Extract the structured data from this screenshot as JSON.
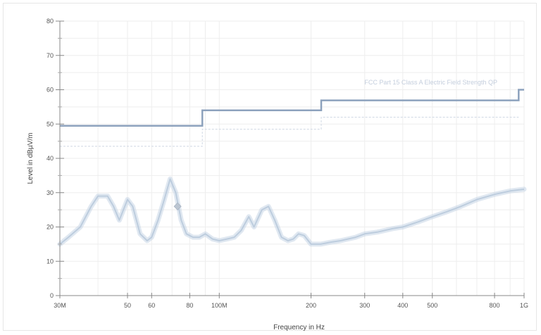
{
  "chart_data": {
    "type": "line",
    "title": "",
    "xlabel": "Frequency in Hz",
    "ylabel": "Level in dBµV/m",
    "x_scale": "log",
    "xlim": [
      30000000,
      1000000000
    ],
    "ylim": [
      0,
      80
    ],
    "grid": true,
    "x_ticks": [
      {
        "value": 30000000,
        "label": "30M"
      },
      {
        "value": 50000000,
        "label": "50"
      },
      {
        "value": 60000000,
        "label": "60"
      },
      {
        "value": 80000000,
        "label": "80"
      },
      {
        "value": 100000000,
        "label": "100M"
      },
      {
        "value": 200000000,
        "label": "200"
      },
      {
        "value": 300000000,
        "label": "300"
      },
      {
        "value": 400000000,
        "label": "400"
      },
      {
        "value": 500000000,
        "label": "500"
      },
      {
        "value": 800000000,
        "label": "800"
      },
      {
        "value": 1000000000,
        "label": "1G"
      }
    ],
    "y_ticks": [
      0,
      10,
      20,
      30,
      40,
      50,
      60,
      70,
      80
    ],
    "series": [
      {
        "name": "FCC Part 15 Class A Electric Field Strength QP",
        "kind": "limit",
        "color": "#8da2bd",
        "x": [
          30000000,
          88000000,
          88000000,
          216000000,
          216000000,
          960000000,
          960000000,
          1000000000
        ],
        "y": [
          49.5,
          49.5,
          54,
          54,
          56.9,
          56.9,
          60,
          60
        ]
      },
      {
        "name": "",
        "kind": "limit-faint",
        "color": "#cfd7e3",
        "x": [
          30000000,
          88000000,
          88000000,
          216000000,
          216000000,
          960000000
        ],
        "y": [
          43.5,
          43.5,
          48.5,
          48.5,
          52,
          52
        ]
      },
      {
        "name": "",
        "kind": "measurement",
        "color": "#c7d6e6",
        "x": [
          30000000,
          32000000,
          35000000,
          38000000,
          40000000,
          43000000,
          45000000,
          47000000,
          50000000,
          52000000,
          55000000,
          58000000,
          60000000,
          63000000,
          66000000,
          69000000,
          72000000,
          75000000,
          78000000,
          82000000,
          86000000,
          90000000,
          95000000,
          100000000,
          106000000,
          112000000,
          118000000,
          125000000,
          130000000,
          138000000,
          145000000,
          152000000,
          160000000,
          168000000,
          175000000,
          182000000,
          190000000,
          200000000,
          215000000,
          230000000,
          250000000,
          280000000,
          300000000,
          330000000,
          370000000,
          400000000,
          450000000,
          500000000,
          560000000,
          620000000,
          700000000,
          800000000,
          900000000,
          1000000000
        ],
        "y": [
          15,
          17,
          20,
          26,
          29,
          29,
          26,
          22,
          28,
          26,
          18,
          16,
          17,
          22,
          28,
          34,
          30,
          22,
          18,
          17,
          17,
          18,
          16.5,
          16,
          16.5,
          17,
          19,
          23,
          20,
          25,
          26,
          22,
          17,
          16,
          16.5,
          18,
          17.5,
          15,
          15,
          15.5,
          16,
          17,
          18,
          18.5,
          19.5,
          20,
          21.5,
          23,
          24.5,
          26,
          28,
          29.5,
          30.5,
          31
        ]
      }
    ],
    "markers": [
      {
        "x": 73000000,
        "y": 26,
        "color": "#bcc6d2"
      }
    ],
    "annotations": [
      {
        "text": "FCC Part 15 Class A Electric Field Strength QP"
      }
    ]
  }
}
